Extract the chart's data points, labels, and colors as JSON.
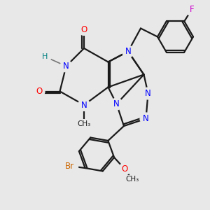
{
  "background_color": "#e8e8e8",
  "bond_color": "#1a1a1a",
  "N_color": "#0000ff",
  "O_color": "#ff0000",
  "H_color": "#008080",
  "F_color": "#cc00cc",
  "Br_color": "#cc6600",
  "C_color": "#1a1a1a",
  "bond_width": 1.6,
  "figsize": [
    3.0,
    3.0
  ],
  "dpi": 100,
  "xlim": [
    0,
    10
  ],
  "ylim": [
    0,
    10
  ]
}
